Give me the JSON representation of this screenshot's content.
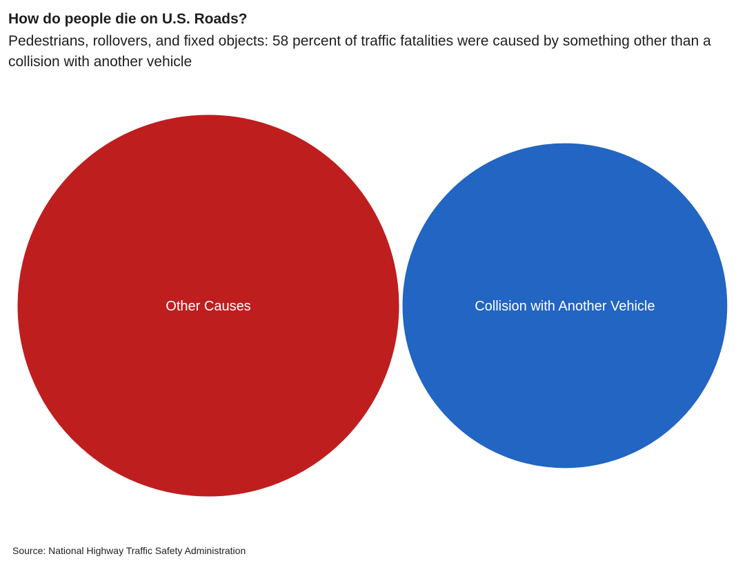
{
  "header": {
    "title": "How do people die on U.S. Roads?",
    "subtitle": "Pedestrians, rollovers, and fixed objects: 58 percent of traffic fatalities were caused by something other than a collision with another vehicle"
  },
  "chart_data": {
    "type": "bubble",
    "title": "How do people die on U.S. Roads?",
    "subtitle": "Pedestrians, rollovers, and fixed objects: 58 percent of traffic fatalities were caused by something other than a collision with another vehicle",
    "series": [
      {
        "name": "Other Causes",
        "value": 58,
        "color": "#bf1e1f"
      },
      {
        "name": "Collision with Another Vehicle",
        "value": 42,
        "color": "#2265c2"
      }
    ],
    "legend": "none"
  },
  "footer": {
    "source": "Source: National Highway Traffic Safety Administration"
  }
}
